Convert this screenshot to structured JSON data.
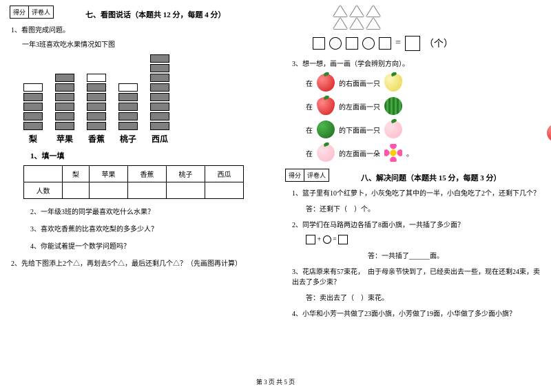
{
  "score_labels": {
    "score": "得分",
    "grader": "评卷人"
  },
  "section7": {
    "title": "七、看图说话（本题共 12 分，每题 4 分）",
    "q1": "1、看图完成问题。",
    "q1_sub": "一年3班喜欢吃水果情况如下图",
    "fruits": [
      "梨",
      "苹果",
      "香蕉",
      "桃子",
      "西瓜"
    ],
    "bars": [
      {
        "filled": 4,
        "empty": 1
      },
      {
        "filled": 6,
        "empty": 0
      },
      {
        "filled": 5,
        "empty": 1
      },
      {
        "filled": 4,
        "empty": 1
      },
      {
        "filled": 8,
        "empty": 0
      }
    ],
    "t1": "1、填一填",
    "row_label": "人数",
    "sub2": "2、一年级3班的同学最喜欢吃什么水果？",
    "sub3": "3、喜欢吃香蕉的比喜欢吃梨的多多少人？",
    "sub4": "4、你能试着提一个数学问题吗？",
    "q2": "2、先给下图添上2个△，再划去5个△，最后还剩几个△？（先画图再计算）"
  },
  "right_top": {
    "eq_suffix": "（个）",
    "q3": "3、想一想，画一画（学会辨别方向）。",
    "rows": [
      {
        "prefix": "在",
        "text": "的右面画一只"
      },
      {
        "prefix": "在",
        "text": "的左面画一只"
      },
      {
        "prefix": "在",
        "text": "的下面画一只"
      },
      {
        "prefix": "在",
        "text": "的左面画一朵",
        "suffix": "。"
      }
    ]
  },
  "section8": {
    "title": "八、解决问题（本题共 15 分，每题 3 分）",
    "q1": "1、篮子里有10个红萝卜，小灰兔吃了其中的一半，小白兔吃了2个，还剩下几个？",
    "a1": "答：还剩下（　）个。",
    "q2": "2、同学们在马路两边各插了8面小旗，一共插了多少面？",
    "eq": "□+□=□",
    "a2": "答：一共插了______面。",
    "q3": "3、花店原来有57束花，　由于母亲节快到了，已经卖出去一些，现在还剩24束，卖出去了多少束？",
    "a3": "答：卖出去了（　）束花。",
    "q4": "4、小华和小芳一共做了23面小旗，小芳做了19面，小华做了多少面小旗？"
  },
  "footer": "第 3 页 共 5 页"
}
